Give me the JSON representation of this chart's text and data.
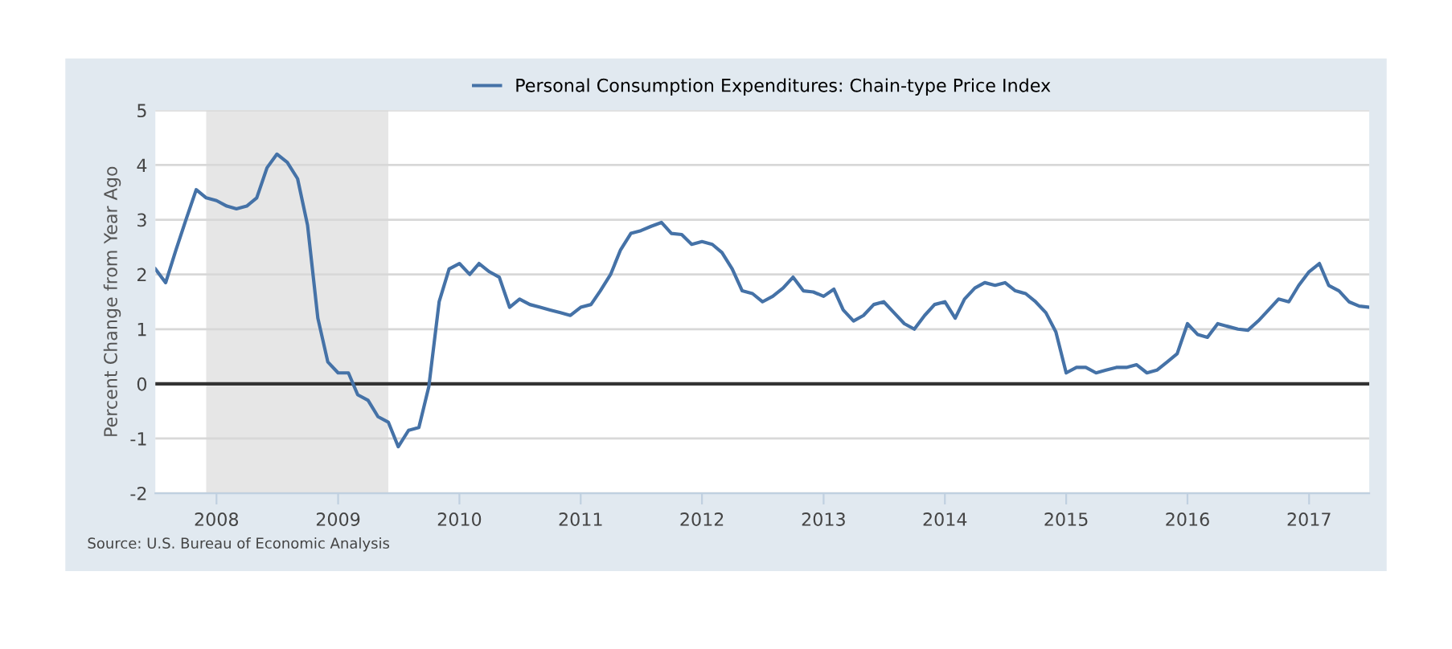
{
  "chart_data": {
    "type": "line",
    "ylabel": "Percent Change from Year Ago",
    "x": [
      "2007-07",
      "2007-08",
      "2007-09",
      "2007-10",
      "2007-11",
      "2007-12",
      "2008-01",
      "2008-02",
      "2008-03",
      "2008-04",
      "2008-05",
      "2008-06",
      "2008-07",
      "2008-08",
      "2008-09",
      "2008-10",
      "2008-11",
      "2008-12",
      "2009-01",
      "2009-02",
      "2009-03",
      "2009-04",
      "2009-05",
      "2009-06",
      "2009-07",
      "2009-08",
      "2009-09",
      "2009-10",
      "2009-11",
      "2009-12",
      "2010-01",
      "2010-02",
      "2010-03",
      "2010-04",
      "2010-05",
      "2010-06",
      "2010-07",
      "2010-08",
      "2010-09",
      "2010-10",
      "2010-11",
      "2010-12",
      "2011-01",
      "2011-02",
      "2011-03",
      "2011-04",
      "2011-05",
      "2011-06",
      "2011-07",
      "2011-08",
      "2011-09",
      "2011-10",
      "2011-11",
      "2011-12",
      "2012-01",
      "2012-02",
      "2012-03",
      "2012-04",
      "2012-05",
      "2012-06",
      "2012-07",
      "2012-08",
      "2012-09",
      "2012-10",
      "2012-11",
      "2012-12",
      "2013-01",
      "2013-02",
      "2013-03",
      "2013-04",
      "2013-05",
      "2013-06",
      "2013-07",
      "2013-08",
      "2013-09",
      "2013-10",
      "2013-11",
      "2013-12",
      "2014-01",
      "2014-02",
      "2014-03",
      "2014-04",
      "2014-05",
      "2014-06",
      "2014-07",
      "2014-08",
      "2014-09",
      "2014-10",
      "2014-11",
      "2014-12",
      "2015-01",
      "2015-02",
      "2015-03",
      "2015-04",
      "2015-05",
      "2015-06",
      "2015-07",
      "2015-08",
      "2015-09",
      "2015-10",
      "2015-11",
      "2015-12",
      "2016-01",
      "2016-02",
      "2016-03",
      "2016-04",
      "2016-05",
      "2016-06",
      "2016-07",
      "2016-08",
      "2016-09",
      "2016-10",
      "2016-11",
      "2016-12",
      "2017-01",
      "2017-02",
      "2017-03",
      "2017-04",
      "2017-05",
      "2017-06",
      "2017-07"
    ],
    "series": [
      {
        "name": "Personal Consumption Expenditures: Chain-type Price Index",
        "color": "#4572a7",
        "values": [
          2.1,
          1.85,
          2.45,
          3.0,
          3.55,
          3.4,
          3.35,
          3.25,
          3.2,
          3.25,
          3.4,
          3.95,
          4.2,
          4.05,
          3.75,
          2.9,
          1.2,
          0.4,
          0.2,
          0.2,
          -0.2,
          -0.3,
          -0.6,
          -0.7,
          -1.15,
          -0.85,
          -0.8,
          -0.05,
          1.5,
          2.1,
          2.2,
          2.0,
          2.2,
          2.05,
          1.95,
          1.4,
          1.55,
          1.45,
          1.4,
          1.35,
          1.3,
          1.25,
          1.4,
          1.45,
          1.7,
          2.0,
          2.45,
          2.75,
          2.8,
          2.88,
          2.95,
          2.75,
          2.73,
          2.55,
          2.6,
          2.55,
          2.4,
          2.1,
          1.7,
          1.65,
          1.5,
          1.6,
          1.75,
          1.95,
          1.7,
          1.68,
          1.6,
          1.73,
          1.35,
          1.15,
          1.25,
          1.45,
          1.5,
          1.3,
          1.1,
          1.0,
          1.25,
          1.45,
          1.5,
          1.2,
          1.55,
          1.75,
          1.85,
          1.8,
          1.85,
          1.7,
          1.65,
          1.5,
          1.3,
          0.95,
          0.2,
          0.3,
          0.3,
          0.2,
          0.25,
          0.3,
          0.3,
          0.35,
          0.2,
          0.25,
          0.4,
          0.55,
          1.1,
          0.9,
          0.85,
          1.1,
          1.05,
          1.0,
          0.98,
          1.15,
          1.35,
          1.55,
          1.5,
          1.8,
          2.05,
          2.2,
          1.8,
          1.7,
          1.5,
          1.42,
          1.4
        ]
      }
    ],
    "xlim": [
      "2007-07-01",
      "2017-07-01"
    ],
    "xticks": [
      {
        "value": "2008-01-01",
        "label": "2008"
      },
      {
        "value": "2009-01-01",
        "label": "2009"
      },
      {
        "value": "2010-01-01",
        "label": "2010"
      },
      {
        "value": "2011-01-01",
        "label": "2011"
      },
      {
        "value": "2012-01-01",
        "label": "2012"
      },
      {
        "value": "2013-01-01",
        "label": "2013"
      },
      {
        "value": "2014-01-01",
        "label": "2014"
      },
      {
        "value": "2015-01-01",
        "label": "2015"
      },
      {
        "value": "2016-01-01",
        "label": "2016"
      },
      {
        "value": "2017-01-01",
        "label": "2017"
      }
    ],
    "ylim": [
      -2,
      5
    ],
    "yticks": [
      -2,
      -1,
      0,
      1,
      2,
      3,
      4,
      5
    ],
    "ref_lines": [
      {
        "axis": "y",
        "value": 0,
        "color": "#333333"
      }
    ],
    "bands": [
      {
        "axis": "x",
        "from": "2007-12-01",
        "to": "2009-06-01",
        "color": "#e6e6e6"
      }
    ],
    "annotations": [
      "Source: U.S. Bureau of Economic Analysis"
    ],
    "grid": "y",
    "legend": "top",
    "marker": "none",
    "line_style": "solid"
  }
}
